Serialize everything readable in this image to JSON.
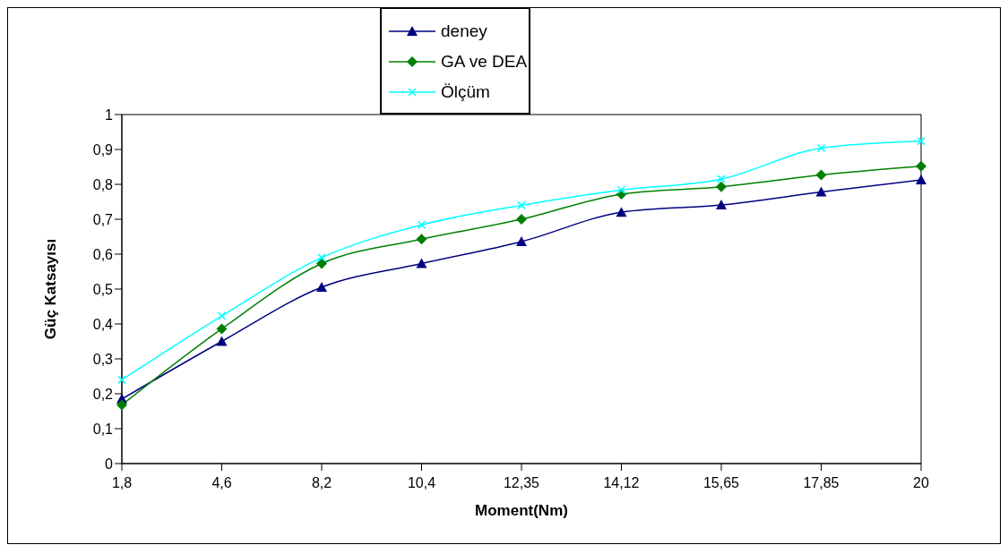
{
  "chart_data": {
    "type": "line",
    "xlabel": "Moment(Nm)",
    "ylabel": "Güç Katsayısı",
    "categories": [
      "1,8",
      "4,6",
      "8,2",
      "10,4",
      "12,35",
      "14,12",
      "15,65",
      "17,85",
      "20"
    ],
    "series": [
      {
        "name": "deney",
        "color": "#000080",
        "marker": "triangle",
        "values": [
          0.185,
          0.35,
          0.505,
          0.573,
          0.636,
          0.72,
          0.741,
          0.778,
          0.813
        ]
      },
      {
        "name": "GA ve DEA",
        "color": "#008000",
        "marker": "diamond",
        "values": [
          0.168,
          0.386,
          0.573,
          0.643,
          0.7,
          0.772,
          0.793,
          0.827,
          0.852
        ]
      },
      {
        "name": "Ölçüm",
        "color": "#00ffff",
        "marker": "cross",
        "values": [
          0.24,
          0.423,
          0.59,
          0.684,
          0.74,
          0.784,
          0.815,
          0.904,
          0.924
        ]
      }
    ],
    "ylim": [
      0,
      1
    ],
    "yticks": [
      {
        "value": 0,
        "label": "0"
      },
      {
        "value": 0.1,
        "label": "0,1"
      },
      {
        "value": 0.2,
        "label": "0,2"
      },
      {
        "value": 0.3,
        "label": "0,3"
      },
      {
        "value": 0.4,
        "label": "0,4"
      },
      {
        "value": 0.5,
        "label": "0,5"
      },
      {
        "value": 0.6,
        "label": "0,6"
      },
      {
        "value": 0.7,
        "label": "0,7"
      },
      {
        "value": 0.8,
        "label": "0,8"
      },
      {
        "value": 0.9,
        "label": "0,9"
      },
      {
        "value": 1,
        "label": "1"
      }
    ],
    "grid": false,
    "legend": "top",
    "line_style": "solid"
  }
}
